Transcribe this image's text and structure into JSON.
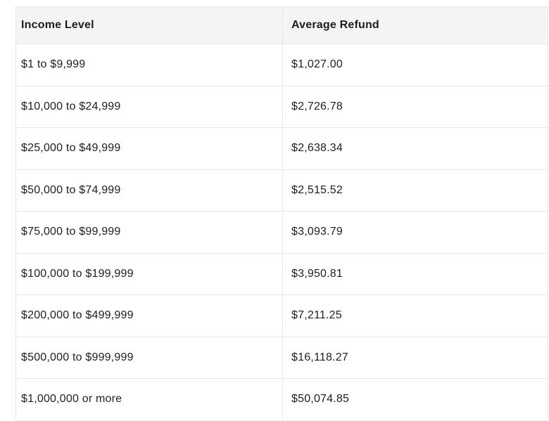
{
  "chart_data": {
    "type": "table",
    "title": "",
    "columns": [
      "Income Level",
      "Average Refund"
    ],
    "rows": [
      {
        "income_level": "$1 to $9,999",
        "average_refund": "$1,027.00"
      },
      {
        "income_level": "$10,000 to $24,999",
        "average_refund": "$2,726.78"
      },
      {
        "income_level": "$25,000 to $49,999",
        "average_refund": "$2,638.34"
      },
      {
        "income_level": "$50,000 to $74,999",
        "average_refund": "$2,515.52"
      },
      {
        "income_level": "$75,000 to $99,999",
        "average_refund": "$3,093.79"
      },
      {
        "income_level": "$100,000 to $199,999",
        "average_refund": "$3,950.81"
      },
      {
        "income_level": "$200,000 to $499,999",
        "average_refund": "$7,211.25"
      },
      {
        "income_level": "$500,000 to $999,999",
        "average_refund": "$16,118.27"
      },
      {
        "income_level": "$1,000,000 or more",
        "average_refund": "$50,074.85"
      }
    ],
    "layout": {
      "legend": "none",
      "grid": "full-borders",
      "header_position": "top"
    },
    "colors": {
      "header_bg": "#f4f4f4",
      "row_bg": "#ffffff",
      "border": "#e8e8e8",
      "text": "#1e1e1e"
    }
  }
}
